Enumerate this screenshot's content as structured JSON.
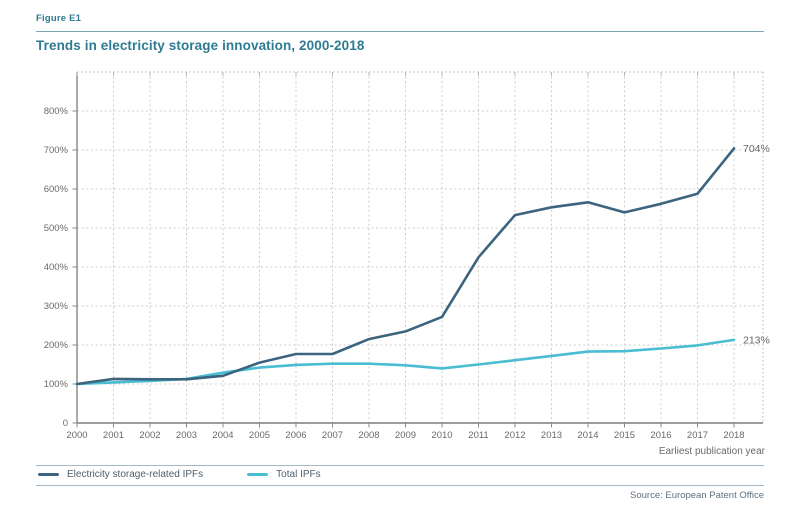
{
  "figure_label": "Figure E1",
  "title": "Trends in electricity storage innovation, 2000-2018",
  "source_note": "Source: European Patent Office",
  "colors": {
    "accent_teal": "#2e7b93",
    "storage_line": "#3d647f",
    "total_line": "#49bdd1",
    "grid": "#cdcdcd",
    "border_dotted": "#b8b8b8",
    "axis": "#7d7d7d",
    "tick": "#8a8a8a",
    "tick_text": "#696969",
    "end_label_text": "#666666"
  },
  "chart_data": {
    "type": "line",
    "x": [
      2000,
      2001,
      2002,
      2003,
      2004,
      2005,
      2006,
      2007,
      2008,
      2009,
      2010,
      2011,
      2012,
      2013,
      2014,
      2015,
      2016,
      2017,
      2018
    ],
    "series": [
      {
        "name": "Electricity storage-related IPFs",
        "color": "#3d647f",
        "values": [
          100,
          113,
          112,
          112,
          121,
          155,
          177,
          177,
          215,
          235,
          272,
          425,
          533,
          553,
          566,
          540,
          562,
          588,
          704
        ],
        "end_label": "704%"
      },
      {
        "name": "Total IPFs",
        "color": "#49bdd1",
        "values": [
          100,
          104,
          108,
          113,
          129,
          142,
          149,
          152,
          152,
          148,
          140,
          150,
          161,
          172,
          183,
          184,
          191,
          199,
          213
        ],
        "end_label": "213%"
      }
    ],
    "xlabel": "Earliest publication year",
    "ylabel": "",
    "yticks": [
      0,
      100,
      200,
      300,
      400,
      500,
      600,
      700,
      800
    ],
    "ytick_labels": [
      "0",
      "100%",
      "200%",
      "300%",
      "400%",
      "500%",
      "600%",
      "700%",
      "800%"
    ],
    "ylim": [
      0,
      900
    ],
    "grid": true,
    "legend_position": "bottom"
  }
}
